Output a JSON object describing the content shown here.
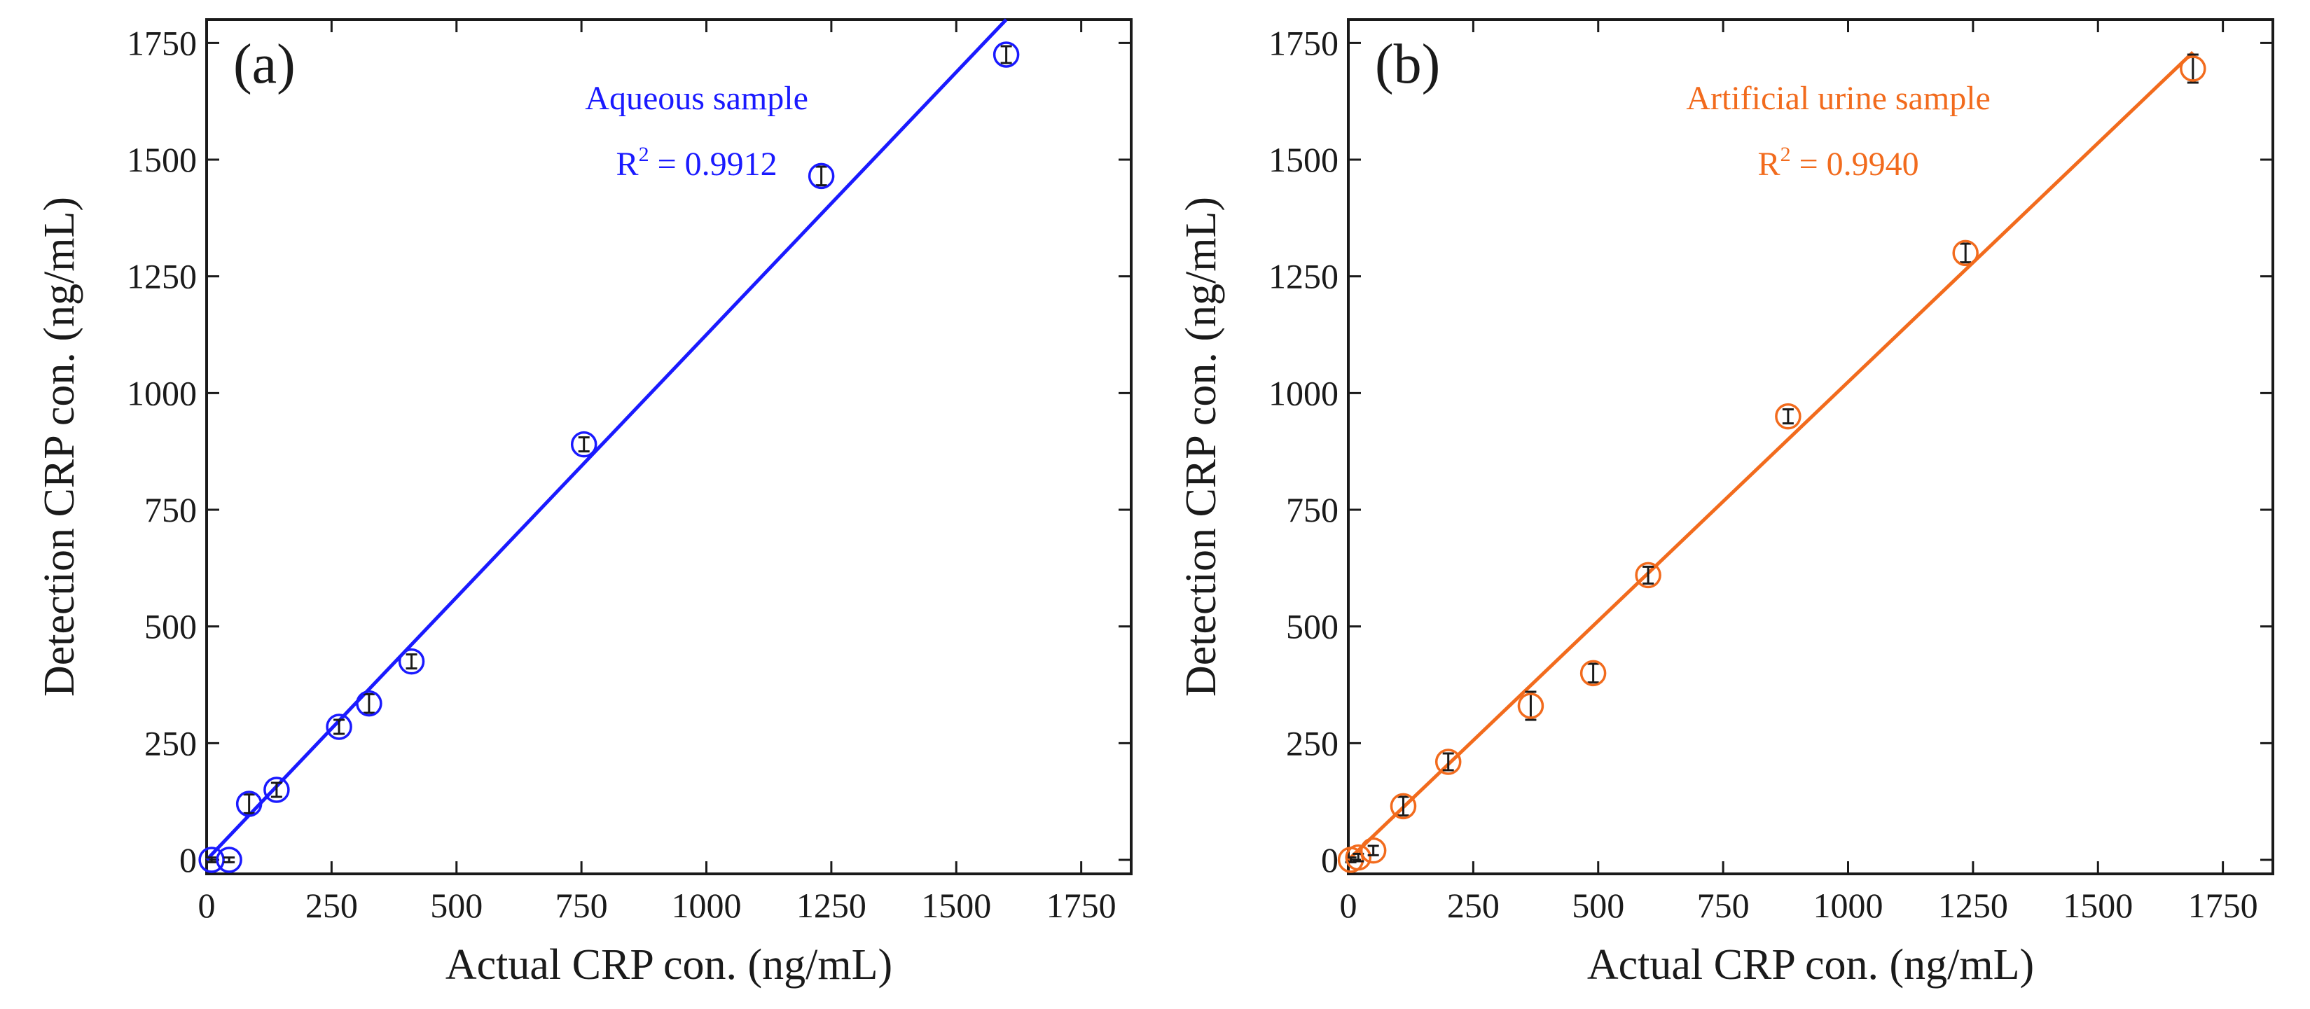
{
  "chart_data": [
    {
      "type": "scatter",
      "panel_label": "(a)",
      "title": "Aqueous sample",
      "r2_prefix": "R",
      "r2_power": "2",
      "r2_value": " = 0.9912",
      "xlabel": "Actual CRP con. (ng/mL)",
      "ylabel": "Detection CRP con. (ng/mL)",
      "xlim": [
        0,
        1850
      ],
      "ylim": [
        -30,
        1800
      ],
      "xticks": [
        0,
        250,
        500,
        750,
        1000,
        1250,
        1500,
        1750
      ],
      "yticks": [
        0,
        250,
        500,
        750,
        1000,
        1250,
        1500,
        1750
      ],
      "xtick_labels": [
        "0",
        "250",
        "500",
        "750",
        "1000",
        "1250",
        "1500",
        "1750"
      ],
      "ytick_labels": [
        "0",
        "250",
        "500",
        "750",
        "1000",
        "1250",
        "1500",
        "1750"
      ],
      "color": "#1a1aff",
      "series": [
        {
          "name": "Aqueous sample",
          "x": [
            10,
            45,
            85,
            140,
            265,
            325,
            410,
            755,
            1230,
            1600
          ],
          "y": [
            0,
            0,
            120,
            150,
            285,
            335,
            425,
            890,
            1465,
            1725
          ],
          "err": [
            5,
            5,
            20,
            15,
            15,
            20,
            15,
            15,
            20,
            18
          ]
        }
      ],
      "fit": {
        "x": [
          0,
          1600
        ],
        "y": [
          0,
          1800
        ]
      }
    },
    {
      "type": "scatter",
      "panel_label": "(b)",
      "title": "Artificial urine sample",
      "r2_prefix": "R",
      "r2_power": "2",
      "r2_value": " = 0.9940",
      "xlabel": "Actual CRP con. (ng/mL)",
      "ylabel": "Detection CRP con. (ng/mL)",
      "xlim": [
        0,
        1850
      ],
      "ylim": [
        -30,
        1800
      ],
      "xticks": [
        0,
        250,
        500,
        750,
        1000,
        1250,
        1500,
        1750
      ],
      "yticks": [
        0,
        250,
        500,
        750,
        1000,
        1250,
        1500,
        1750
      ],
      "xtick_labels": [
        "0",
        "250",
        "500",
        "750",
        "1000",
        "1250",
        "1500",
        "1750"
      ],
      "ytick_labels": [
        "0",
        "250",
        "500",
        "750",
        "1000",
        "1250",
        "1500",
        "1750"
      ],
      "color": "#f26b1d",
      "series": [
        {
          "name": "Artificial urine sample",
          "x": [
            5,
            20,
            50,
            110,
            200,
            365,
            490,
            600,
            880,
            1235,
            1690
          ],
          "y": [
            0,
            5,
            20,
            115,
            210,
            330,
            400,
            610,
            950,
            1300,
            1695
          ],
          "err": [
            5,
            8,
            10,
            20,
            18,
            30,
            20,
            18,
            15,
            20,
            30
          ]
        }
      ],
      "fit": {
        "x": [
          0,
          1690
        ],
        "y": [
          0,
          1730
        ]
      }
    }
  ]
}
